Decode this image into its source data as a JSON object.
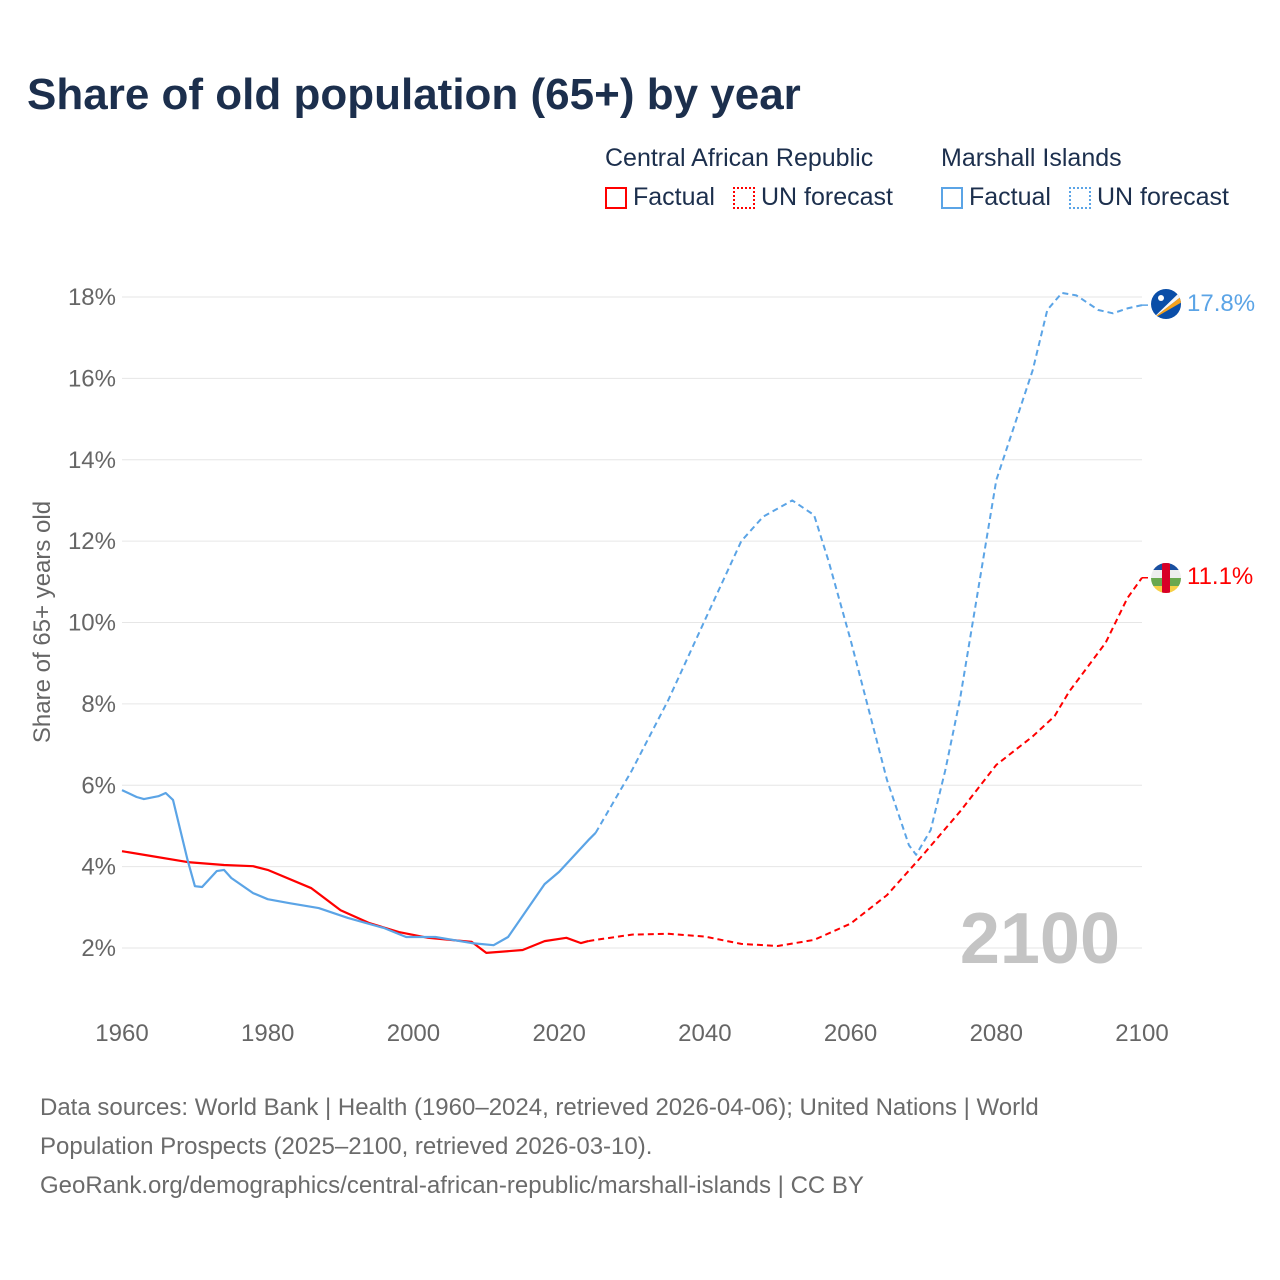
{
  "title": "Share of old population (65+) by year",
  "legend": {
    "groups": [
      {
        "name": "Central African Republic",
        "factual": "Factual",
        "forecast": "UN forecast",
        "color": "#ff0000"
      },
      {
        "name": "Marshall Islands",
        "factual": "Factual",
        "forecast": "UN forecast",
        "color": "#5ba4e6"
      }
    ]
  },
  "year_watermark": "2100",
  "footer": {
    "line1": "Data sources: World Bank | Health (1960–2024, retrieved 2026-04-06); United Nations | World",
    "line2": "Population Prospects (2025–2100, retrieved 2026-03-10).",
    "line3": "GeoRank.org/demographics/central-african-republic/marshall-islands | CC BY"
  },
  "chart_data": {
    "type": "line",
    "title": "Share of old population (65+) by year",
    "xlabel": "",
    "ylabel": "Share of 65+ years old",
    "xlim": [
      1960,
      2100
    ],
    "ylim": [
      1,
      18.5
    ],
    "x_ticks": [
      "1960",
      "1980",
      "2000",
      "2020",
      "2040",
      "2060",
      "2080",
      "2100"
    ],
    "y_ticks": [
      {
        "v": 2,
        "label": "2%"
      },
      {
        "v": 4,
        "label": "4%"
      },
      {
        "v": 6,
        "label": "6%"
      },
      {
        "v": 8,
        "label": "8%"
      },
      {
        "v": 10,
        "label": "10%"
      },
      {
        "v": 12,
        "label": "12%"
      },
      {
        "v": 14,
        "label": "14%"
      },
      {
        "v": 16,
        "label": "16%"
      },
      {
        "v": 18,
        "label": "18%"
      }
    ],
    "grid": true,
    "legend_position": "top-right",
    "series": [
      {
        "name": "Central African Republic",
        "color": "#ff0000",
        "end_label": "11.1%",
        "factual": [
          [
            1960,
            4.38
          ],
          [
            1964,
            4.26
          ],
          [
            1969,
            4.11
          ],
          [
            1974,
            4.04
          ],
          [
            1978,
            4.01
          ],
          [
            1980,
            3.92
          ],
          [
            1986,
            3.47
          ],
          [
            1990,
            2.93
          ],
          [
            1994,
            2.61
          ],
          [
            1998,
            2.39
          ],
          [
            2002,
            2.25
          ],
          [
            2008,
            2.15
          ],
          [
            2010,
            1.88
          ],
          [
            2015,
            1.95
          ],
          [
            2018,
            2.17
          ],
          [
            2021,
            2.25
          ],
          [
            2023,
            2.12
          ],
          [
            2024,
            2.17
          ]
        ],
        "forecast": [
          [
            2024,
            2.17
          ],
          [
            2025,
            2.2
          ],
          [
            2030,
            2.33
          ],
          [
            2035,
            2.35
          ],
          [
            2040,
            2.28
          ],
          [
            2045,
            2.1
          ],
          [
            2050,
            2.05
          ],
          [
            2055,
            2.2
          ],
          [
            2060,
            2.6
          ],
          [
            2065,
            3.3
          ],
          [
            2070,
            4.3
          ],
          [
            2075,
            5.35
          ],
          [
            2080,
            6.5
          ],
          [
            2085,
            7.2
          ],
          [
            2088,
            7.7
          ],
          [
            2090,
            8.3
          ],
          [
            2095,
            9.5
          ],
          [
            2098,
            10.6
          ],
          [
            2100,
            11.1
          ]
        ]
      },
      {
        "name": "Marshall Islands",
        "color": "#5ba4e6",
        "end_label": "17.8%",
        "factual": [
          [
            1960,
            5.88
          ],
          [
            1962,
            5.71
          ],
          [
            1963,
            5.66
          ],
          [
            1965,
            5.73
          ],
          [
            1966,
            5.81
          ],
          [
            1967,
            5.64
          ],
          [
            1968,
            4.9
          ],
          [
            1969,
            4.16
          ],
          [
            1970,
            3.52
          ],
          [
            1971,
            3.5
          ],
          [
            1973,
            3.89
          ],
          [
            1974,
            3.92
          ],
          [
            1975,
            3.72
          ],
          [
            1978,
            3.35
          ],
          [
            1980,
            3.2
          ],
          [
            1983,
            3.1
          ],
          [
            1987,
            2.98
          ],
          [
            1991,
            2.74
          ],
          [
            1996,
            2.49
          ],
          [
            1999,
            2.27
          ],
          [
            2003,
            2.27
          ],
          [
            2008,
            2.12
          ],
          [
            2011,
            2.07
          ],
          [
            2013,
            2.27
          ],
          [
            2018,
            3.57
          ],
          [
            2020,
            3.87
          ],
          [
            2024,
            4.65
          ],
          [
            2025,
            4.83
          ]
        ],
        "forecast": [
          [
            2025,
            4.83
          ],
          [
            2030,
            6.37
          ],
          [
            2035,
            8.1
          ],
          [
            2040,
            10.06
          ],
          [
            2045,
            12.0
          ],
          [
            2048,
            12.6
          ],
          [
            2052,
            13.0
          ],
          [
            2055,
            12.64
          ],
          [
            2057,
            11.5
          ],
          [
            2060,
            9.57
          ],
          [
            2065,
            6.13
          ],
          [
            2068,
            4.53
          ],
          [
            2069,
            4.29
          ],
          [
            2071,
            4.9
          ],
          [
            2073,
            6.37
          ],
          [
            2075,
            8.1
          ],
          [
            2080,
            13.5
          ],
          [
            2085,
            16.2
          ],
          [
            2087,
            17.68
          ],
          [
            2089,
            18.1
          ],
          [
            2091,
            18.04
          ],
          [
            2094,
            17.68
          ],
          [
            2096,
            17.6
          ],
          [
            2098,
            17.72
          ],
          [
            2100,
            17.8
          ]
        ]
      }
    ]
  }
}
